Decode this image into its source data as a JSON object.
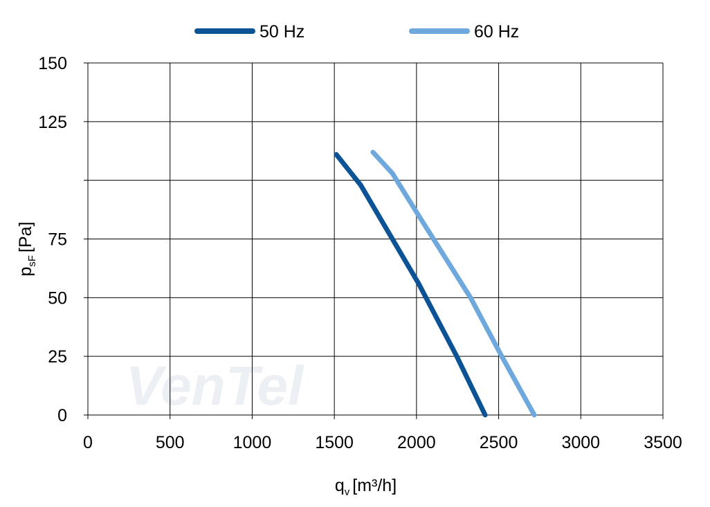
{
  "chart_data": {
    "type": "line",
    "xlabel": {
      "main": "q",
      "sub": "v",
      "unit": "[m³/h]"
    },
    "ylabel": {
      "main": "p",
      "sub": "sF",
      "unit": "[Pa]"
    },
    "watermark": "VenTel",
    "series": [
      {
        "name": "50 Hz",
        "color": "#0b5394",
        "x": [
          1512,
          1660,
          2013,
          2245,
          2418
        ],
        "values": [
          111,
          98,
          56,
          25,
          0
        ]
      },
      {
        "name": "60 Hz",
        "color": "#6fa8dc",
        "x": [
          1735,
          1853,
          2013,
          2329,
          2519,
          2717
        ],
        "values": [
          112,
          103,
          85,
          50,
          25,
          0
        ]
      }
    ],
    "xlim": [
      0,
      3500
    ],
    "xticks": [
      0,
      500,
      1000,
      1500,
      2000,
      2500,
      3000,
      3500
    ],
    "ylim": [
      0,
      150
    ],
    "yticks": [
      0,
      25,
      50,
      75,
      125,
      150
    ],
    "ygrid": [
      0,
      25,
      50,
      75,
      100,
      125,
      150
    ],
    "grid": true,
    "legend": "top"
  }
}
